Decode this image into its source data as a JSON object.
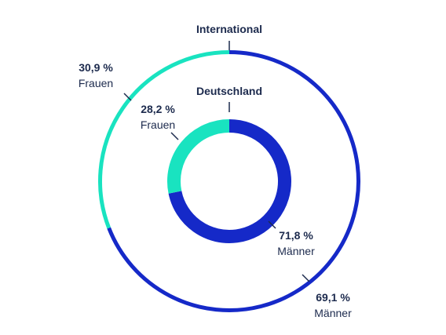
{
  "chart_data": {
    "type": "pie",
    "colors": {
      "Frauen": "#19e3c0",
      "Männer": "#1529c8"
    },
    "rings": [
      {
        "name": "International",
        "slices": [
          {
            "label": "Frauen",
            "value": 30.9,
            "value_text": "30,9 %"
          },
          {
            "label": "Männer",
            "value": 69.1,
            "value_text": "69,1 %"
          }
        ]
      },
      {
        "name": "Deutschland",
        "slices": [
          {
            "label": "Frauen",
            "value": 28.2,
            "value_text": "28,2 %"
          },
          {
            "label": "Männer",
            "value": 71.8,
            "value_text": "71,8 %"
          }
        ]
      }
    ]
  }
}
